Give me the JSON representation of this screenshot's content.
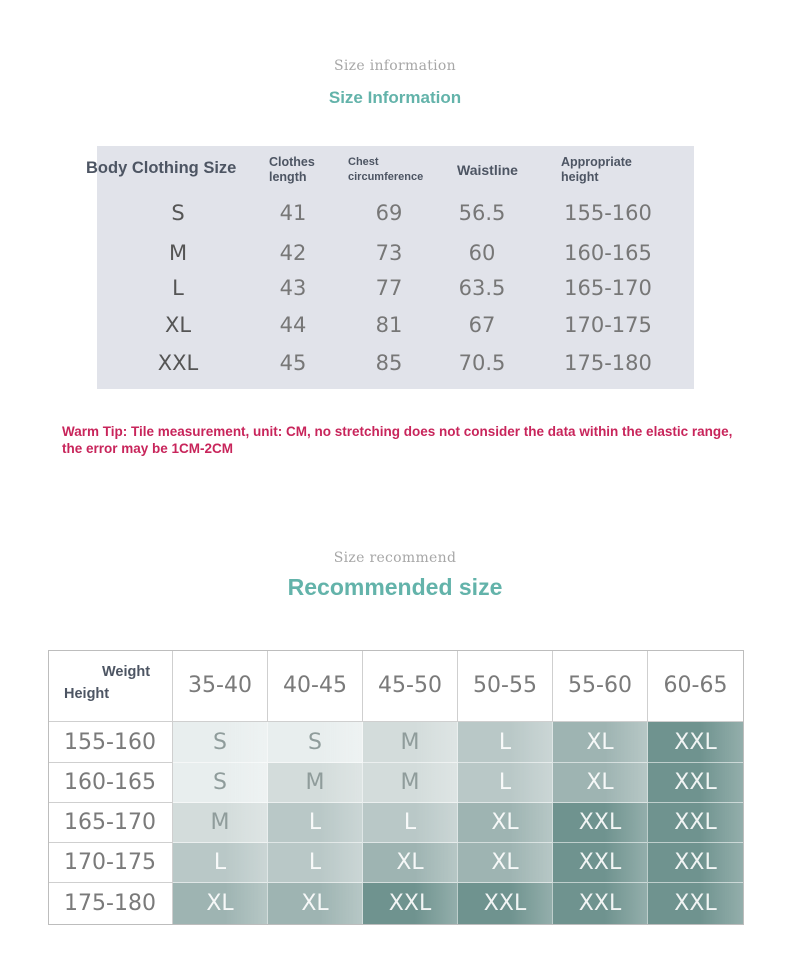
{
  "size_info": {
    "eyebrow": "Size information",
    "title": "Size Information",
    "headers": {
      "size": "Body Clothing Size",
      "length": [
        "Clothes",
        "length"
      ],
      "chest": [
        "Chest",
        "circumference"
      ],
      "waist": "Waistline",
      "height": [
        "Appropriate",
        "height"
      ]
    },
    "rows": [
      {
        "size": "S",
        "length": "41",
        "chest": "69",
        "waist": "56.5",
        "height": "155-160"
      },
      {
        "size": "M",
        "length": "42",
        "chest": "73",
        "waist": "60",
        "height": "160-165"
      },
      {
        "size": "L",
        "length": "43",
        "chest": "77",
        "waist": "63.5",
        "height": "165-170"
      },
      {
        "size": "XL",
        "length": "44",
        "chest": "81",
        "waist": "67",
        "height": "170-175"
      },
      {
        "size": "XXL",
        "length": "45",
        "chest": "85",
        "waist": "70.5",
        "height": "175-180"
      }
    ],
    "warm_tip": "Warm Tip: Tile measurement, unit: CM, no stretching does not consider the data within the elastic range, the error may be 1CM-2CM"
  },
  "recommend": {
    "eyebrow": "Size recommend",
    "title": "Recommended size",
    "corner_weight": "Weight",
    "corner_height": "Height",
    "weights": [
      "35-40",
      "40-45",
      "45-50",
      "50-55",
      "55-60",
      "60-65"
    ],
    "heights": [
      "155-160",
      "160-165",
      "165-170",
      "170-175",
      "175-180"
    ],
    "grid": [
      [
        "S",
        "S",
        "M",
        "L",
        "XL",
        "XXL"
      ],
      [
        "S",
        "M",
        "M",
        "L",
        "XL",
        "XXL"
      ],
      [
        "M",
        "L",
        "L",
        "XL",
        "XXL",
        "XXL"
      ],
      [
        "L",
        "L",
        "XL",
        "XL",
        "XXL",
        "XXL"
      ],
      [
        "XL",
        "XL",
        "XXL",
        "XXL",
        "XXL",
        "XXL"
      ]
    ],
    "colors": {
      "S": "#e8eeee",
      "M": "#d3dcdb",
      "L": "#b9c8c7",
      "XL": "#9eb4b2",
      "XXL": "#6f938f"
    }
  }
}
